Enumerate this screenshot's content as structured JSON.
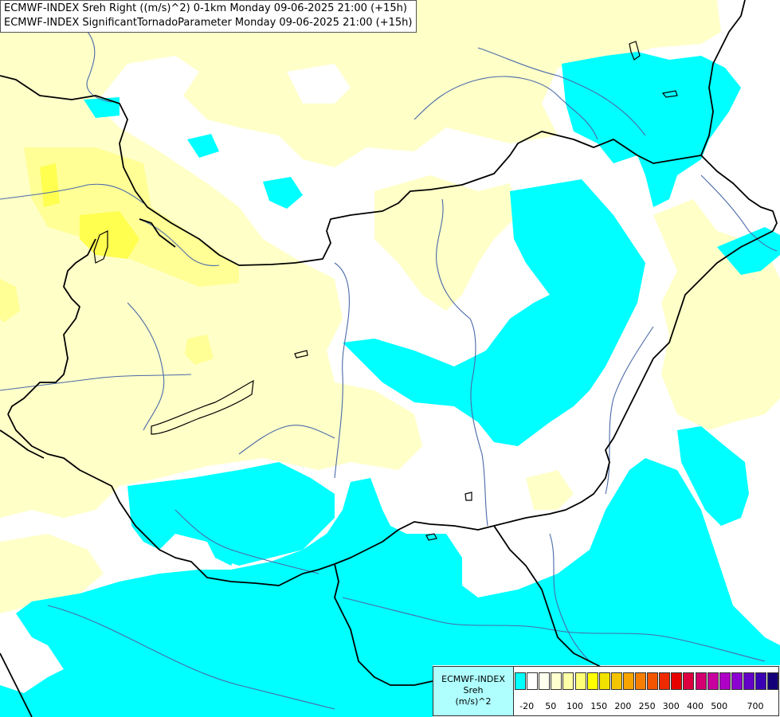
{
  "title": {
    "line1": "ECMWF-INDEX Sreh Right ((m/s)^2) 0-1km Monday 09-06-2025 21:00 (+15h)",
    "line2": "ECMWF-INDEX SignificantTornadoParameter Monday 09-06-2025 21:00 (+15h)"
  },
  "legend": {
    "source": "ECMWF-INDEX",
    "variable": "Sreh",
    "unit": "(m/s)^2",
    "colors": [
      "#00ffff",
      "#ffffff",
      "#fffff0",
      "#ffffd0",
      "#ffffa8",
      "#ffff78",
      "#ffff00",
      "#f2e200",
      "#f5c400",
      "#f7a400",
      "#f57e00",
      "#f25400",
      "#ee2a00",
      "#e80000",
      "#dc0040",
      "#d20070",
      "#c800a0",
      "#b000c8",
      "#8c00d2",
      "#6400c8",
      "#3c00b4",
      "#140078"
    ],
    "ticks": [
      "-20",
      "50",
      "100",
      "150",
      "200",
      "250",
      "300",
      "400",
      "500",
      "700"
    ]
  },
  "colors": {
    "cyan": "#00ffff",
    "pale_yellow": "#ffffc8",
    "yellow_light": "#ffff96",
    "yellow_mid": "#ffff50",
    "border": "#000000",
    "river": "#4a6aa8"
  }
}
